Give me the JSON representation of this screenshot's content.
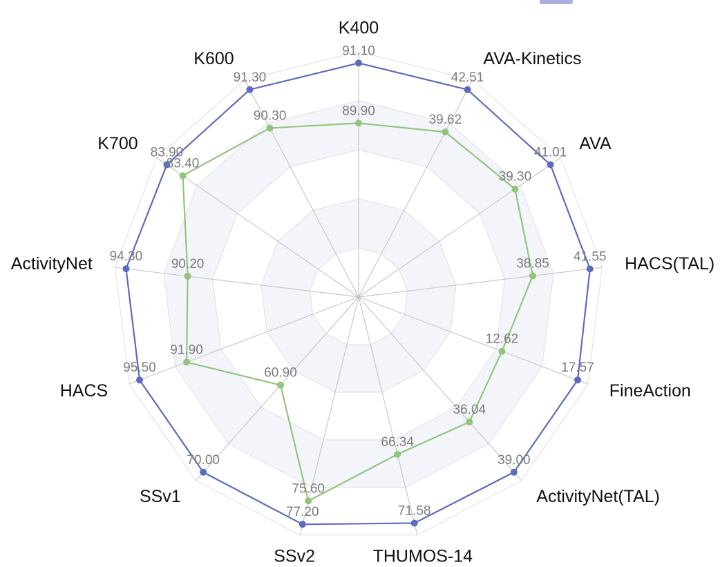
{
  "chart_data": {
    "type": "radar",
    "axes": [
      "K400",
      "AVA-Kinetics",
      "AVA",
      "HACS(TAL)",
      "FineAction",
      "ActivityNet(TAL)",
      "THUMOS-14",
      "SSv2",
      "SSv1",
      "HACS",
      "ActivityNet",
      "K700",
      "K600"
    ],
    "series": [
      {
        "color": "#5b6bbf",
        "values": [
          91.1,
          42.51,
          41.01,
          41.55,
          17.57,
          39.0,
          71.58,
          77.2,
          70.0,
          95.5,
          94.3,
          83.9,
          91.3
        ],
        "value_labels": [
          "91.10",
          "42.51",
          "41.01",
          "41.55",
          "17.57",
          "39.00",
          "71.58",
          "77.20",
          "70.00",
          "95.50",
          "94.30",
          "83.90",
          "91.30"
        ],
        "relative_radius": [
          0.954,
          0.955,
          0.95,
          0.95,
          0.955,
          0.955,
          0.95,
          0.955,
          0.955,
          0.955,
          0.955,
          0.95,
          0.955
        ]
      },
      {
        "color": "#93c47d",
        "values": [
          89.9,
          39.62,
          39.3,
          38.85,
          12.62,
          36.04,
          66.34,
          75.6,
          60.9,
          91.9,
          90.2,
          83.4,
          90.3
        ],
        "value_labels": [
          "89.90",
          "39.62",
          "39.30",
          "38.85",
          "12.62",
          "36.04",
          "66.34",
          "75.60",
          "60.90",
          "91.90",
          "90.20",
          "83.40",
          "90.30"
        ],
        "relative_radius": [
          0.709,
          0.76,
          0.775,
          0.715,
          0.625,
          0.681,
          0.661,
          0.857,
          0.48,
          0.75,
          0.702,
          0.871,
          0.778
        ]
      }
    ],
    "grid": true,
    "ring_count": 5,
    "colors": {
      "grid_line": "#e3e3ea",
      "spoke": "#c8c8c8",
      "band": "#f4f5fa",
      "legend_swatch": "#aab0de"
    }
  }
}
